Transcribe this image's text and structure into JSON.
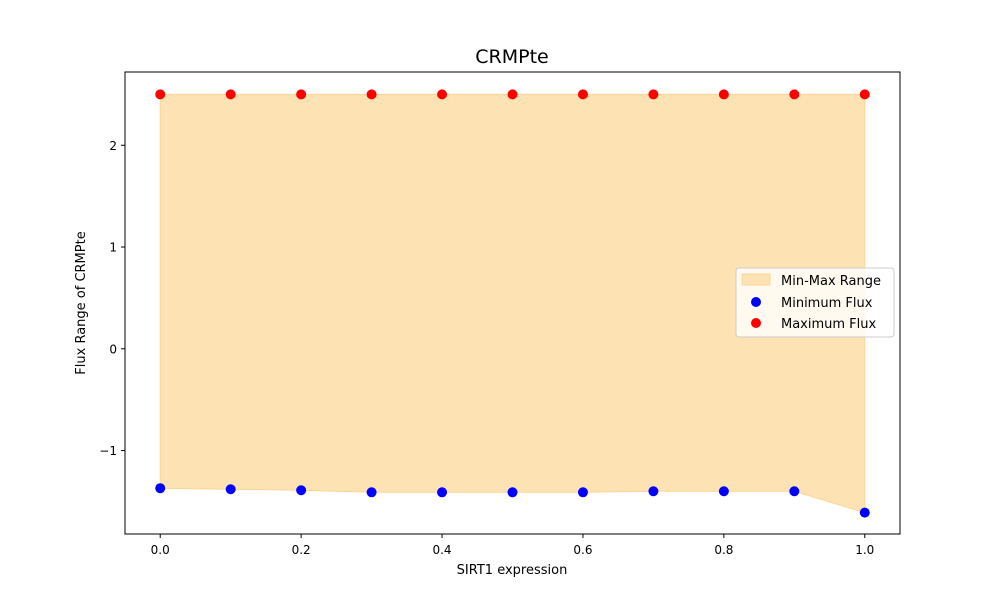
{
  "chart_data": {
    "type": "scatter",
    "title": "CRMPte",
    "xlabel": "SIRT1 expression",
    "ylabel": "Flux Range of CRMPte",
    "xlim": [
      -0.05,
      1.05
    ],
    "ylim": [
      -1.82,
      2.72
    ],
    "x": [
      0.0,
      0.1,
      0.2,
      0.3,
      0.4,
      0.5,
      0.6,
      0.7,
      0.8,
      0.9,
      1.0
    ],
    "x_ticks": [
      0.0,
      0.2,
      0.4,
      0.6,
      0.8,
      1.0
    ],
    "x_tick_labels": [
      "0.0",
      "0.2",
      "0.4",
      "0.6",
      "0.8",
      "1.0"
    ],
    "y_ticks": [
      -1,
      0,
      1,
      2
    ],
    "y_tick_labels": [
      "−1",
      "0",
      "1",
      "2"
    ],
    "grid": false,
    "legend_position": "center-right",
    "series": [
      {
        "name": "Min-Max Range",
        "kind": "fill_between",
        "color": "#fde3b3",
        "edge_color": "#fbd595"
      },
      {
        "name": "Minimum Flux",
        "kind": "scatter",
        "color": "#0000ff",
        "values": [
          -1.37,
          -1.38,
          -1.39,
          -1.41,
          -1.41,
          -1.41,
          -1.41,
          -1.4,
          -1.4,
          -1.4,
          -1.61
        ]
      },
      {
        "name": "Maximum Flux",
        "kind": "scatter",
        "color": "#ff0000",
        "values": [
          2.5,
          2.5,
          2.5,
          2.5,
          2.5,
          2.5,
          2.5,
          2.5,
          2.5,
          2.5,
          2.5
        ]
      }
    ]
  }
}
